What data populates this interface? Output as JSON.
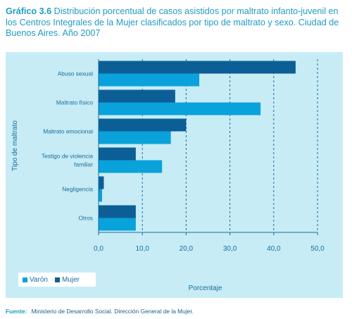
{
  "title": {
    "label": "Gráfico 3.6",
    "text": "Distribución porcentual de casos asistidos por maltrato infanto-juvenil en los Centros Integrales de la Mujer clasificados por tipo de maltrato y sexo. Ciudad de Buenos Aires. Año 2007"
  },
  "source": {
    "label": "Fuente:",
    "text": "Ministerio de Desarrollo Social. Dirección General de la Mujer."
  },
  "colors": {
    "mujer": "#0b5f96",
    "varon": "#0aa2da",
    "axis_text": "#1a6c9e",
    "grid": "#1a6c9e",
    "panel": "#c7ecf6"
  },
  "chart_data": {
    "type": "bar",
    "orientation": "horizontal",
    "categories": [
      "Abuso sexual",
      "Maltrato físico",
      "Maltrato emocional",
      "Testigo de violencia familiar",
      "Negligencia",
      "Otros"
    ],
    "category_lines": [
      [
        "Abuso sexual"
      ],
      [
        "Maltrato físico"
      ],
      [
        "Maltrato emocional"
      ],
      [
        "Testigo de violencia",
        "familiar"
      ],
      [
        "Negligencia"
      ],
      [
        "Otros"
      ]
    ],
    "series": [
      {
        "name": "Mujer",
        "values": [
          45.0,
          17.5,
          20.0,
          8.5,
          1.2,
          8.5
        ]
      },
      {
        "name": "Varón",
        "values": [
          23.0,
          37.0,
          16.5,
          14.5,
          0.8,
          8.5
        ]
      }
    ],
    "legend_order": [
      "Varón",
      "Mujer"
    ],
    "xlabel": "Porcentaje",
    "ylabel": "Tipo de maltrato",
    "xlim": [
      0,
      50
    ],
    "xticks": [
      0,
      10,
      20,
      30,
      40,
      50
    ],
    "xtick_labels": [
      "0,0",
      "10,0",
      "20,0",
      "30,0",
      "40,0",
      "50,0"
    ],
    "grid": "vertical dashed",
    "legend_position": "bottom-left"
  }
}
